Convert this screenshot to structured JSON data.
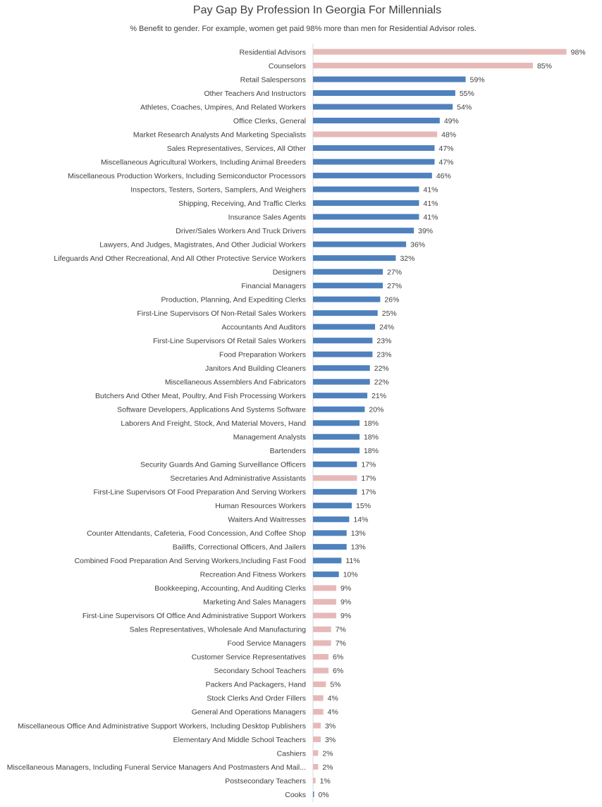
{
  "chart_data": {
    "type": "bar",
    "orientation": "horizontal",
    "title": "Pay Gap By Profession In Georgia For Millennials",
    "subtitle": "% Benefit to gender. For example, women get paid 98% more than men for Residential Advisor roles.",
    "value_suffix": "%",
    "colors": {
      "women_favored": "#e6b9b8",
      "men_favored": "#4f81bd"
    },
    "categories": [
      "Residential Advisors",
      "Counselors",
      "Retail Salespersons",
      "Other Teachers And Instructors",
      "Athletes, Coaches, Umpires, And Related Workers",
      "Office Clerks, General",
      "Market Research Analysts And Marketing Specialists",
      "Sales Representatives, Services, All Other",
      "Miscellaneous Agricultural Workers, Including Animal Breeders",
      "Miscellaneous Production Workers, Including Semiconductor Processors",
      "Inspectors, Testers, Sorters, Samplers, And Weighers",
      "Shipping, Receiving, And Traffic Clerks",
      "Insurance Sales Agents",
      "Driver/Sales Workers And Truck Drivers",
      "Lawyers, And Judges, Magistrates, And Other Judicial Workers",
      "Lifeguards And Other Recreational, And All Other Protective Service Workers",
      "Designers",
      "Financial Managers",
      "Production, Planning, And Expediting Clerks",
      "First-Line Supervisors Of Non-Retail Sales Workers",
      "Accountants And Auditors",
      "First-Line Supervisors Of Retail Sales Workers",
      "Food Preparation Workers",
      "Janitors And Building Cleaners",
      "Miscellaneous Assemblers And Fabricators",
      "Butchers And Other Meat, Poultry, And Fish Processing Workers",
      "Software Developers, Applications And Systems Software",
      "Laborers And Freight, Stock, And Material Movers, Hand",
      "Management Analysts",
      "Bartenders",
      "Security Guards And Gaming Surveillance Officers",
      "Secretaries And Administrative Assistants",
      "First-Line Supervisors Of Food Preparation And Serving Workers",
      "Human Resources Workers",
      "Waiters And Waitresses",
      "Counter Attendants, Cafeteria, Food Concession, And Coffee Shop",
      "Bailiffs, Correctional Officers, And Jailers",
      "Combined Food Preparation And Serving Workers,Including Fast Food",
      "Recreation And Fitness Workers",
      "Bookkeeping, Accounting, And Auditing Clerks",
      "Marketing And Sales Managers",
      "First-Line Supervisors Of Office And Administrative Support Workers",
      "Sales Representatives, Wholesale And Manufacturing",
      "Food Service Managers",
      "Customer Service Representatives",
      "Secondary School Teachers",
      "Packers And Packagers, Hand",
      "Stock Clerks And Order Fillers",
      "General And Operations Managers",
      "Miscellaneous Office And Administrative Support Workers, Including Desktop Publishers",
      "Elementary And Middle School Teachers",
      "Cashiers",
      "Miscellaneous Managers, Including Funeral Service Managers And Postmasters And Mail...",
      "Postsecondary Teachers",
      "Cooks"
    ],
    "values": [
      98,
      85,
      59,
      55,
      54,
      49,
      48,
      47,
      47,
      46,
      41,
      41,
      41,
      39,
      36,
      32,
      27,
      27,
      26,
      25,
      24,
      23,
      23,
      22,
      22,
      21,
      20,
      18,
      18,
      18,
      17,
      17,
      17,
      15,
      14,
      13,
      13,
      11,
      10,
      9,
      9,
      9,
      7,
      7,
      6,
      6,
      5,
      4,
      4,
      3,
      3,
      2,
      2,
      1,
      0
    ],
    "favored_gender": [
      "women",
      "women",
      "men",
      "men",
      "men",
      "men",
      "women",
      "men",
      "men",
      "men",
      "men",
      "men",
      "men",
      "men",
      "men",
      "men",
      "men",
      "men",
      "men",
      "men",
      "men",
      "men",
      "men",
      "men",
      "men",
      "men",
      "men",
      "men",
      "men",
      "men",
      "men",
      "women",
      "men",
      "men",
      "men",
      "men",
      "men",
      "men",
      "men",
      "women",
      "women",
      "women",
      "women",
      "women",
      "women",
      "women",
      "women",
      "women",
      "women",
      "women",
      "women",
      "women",
      "women",
      "women",
      "men"
    ],
    "xlim": [
      0,
      100
    ],
    "grid": false,
    "legend": "none"
  }
}
